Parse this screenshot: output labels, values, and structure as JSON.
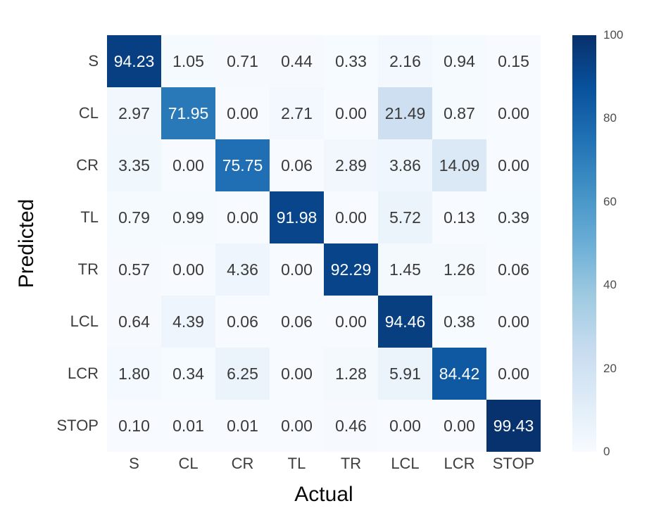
{
  "figure": {
    "kind": "confusion-matrix-heatmap",
    "background_color": "#ffffff"
  },
  "axes": {
    "x_label": "Actual",
    "y_label": "Predicted"
  },
  "chart_data": {
    "type": "heatmap",
    "title": "",
    "xlabel": "Actual",
    "ylabel": "Predicted",
    "x_categories": [
      "S",
      "CL",
      "CR",
      "TL",
      "TR",
      "LCL",
      "LCR",
      "STOP"
    ],
    "y_categories": [
      "S",
      "CL",
      "CR",
      "TL",
      "TR",
      "LCL",
      "LCR",
      "STOP"
    ],
    "values": [
      [
        94.23,
        1.05,
        0.71,
        0.44,
        0.33,
        2.16,
        0.94,
        0.15
      ],
      [
        2.97,
        71.95,
        0.0,
        2.71,
        0.0,
        21.49,
        0.87,
        0.0
      ],
      [
        3.35,
        0.0,
        75.75,
        0.06,
        2.89,
        3.86,
        14.09,
        0.0
      ],
      [
        0.79,
        0.99,
        0.0,
        91.98,
        0.0,
        5.72,
        0.13,
        0.39
      ],
      [
        0.57,
        0.0,
        4.36,
        0.0,
        92.29,
        1.45,
        1.26,
        0.06
      ],
      [
        0.64,
        4.39,
        0.06,
        0.06,
        0.0,
        94.46,
        0.38,
        0.0
      ],
      [
        1.8,
        0.34,
        6.25,
        0.0,
        1.28,
        5.91,
        84.42,
        0.0
      ],
      [
        0.1,
        0.01,
        0.01,
        0.0,
        0.46,
        0.0,
        0.0,
        99.43
      ]
    ],
    "value_decimals": 2,
    "vmin": 0,
    "vmax": 100,
    "colorbar_ticks": [
      100,
      80,
      60,
      40,
      20,
      0
    ],
    "colorbar_position": "right",
    "grid": false,
    "colormap": {
      "name": "Blues",
      "stops": [
        "#f7fbff",
        "#deebf7",
        "#c6dbef",
        "#9ecae1",
        "#6baed6",
        "#4292c6",
        "#2171b5",
        "#08519c",
        "#08306b"
      ]
    },
    "annotation_text_dark": "#3a3a3a",
    "annotation_text_light": "#ffffff",
    "light_text_threshold": 60
  }
}
